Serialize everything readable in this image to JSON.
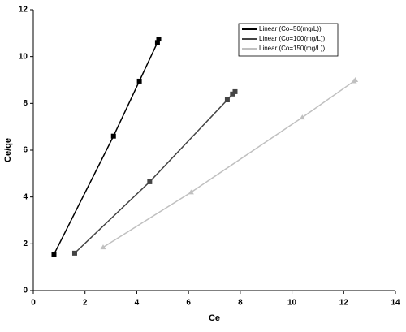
{
  "chart_data": {
    "type": "scatter",
    "x_label": "Ce",
    "y_label": "Ce/qe",
    "xlim": [
      0,
      14
    ],
    "xticks": [
      0,
      2,
      4,
      6,
      8,
      10,
      12,
      14
    ],
    "ylim": [
      0,
      12
    ],
    "yticks": [
      0,
      2,
      4,
      6,
      8,
      10,
      12
    ],
    "grid": false,
    "legend": "upper right",
    "series": [
      {
        "name": "Linear (Co=50(mg/L))",
        "color": "#000000",
        "marker": "square",
        "x": [
          0.8,
          3.1,
          4.1,
          4.8,
          4.85
        ],
        "values": [
          1.55,
          6.6,
          8.95,
          10.6,
          10.75
        ]
      },
      {
        "name": "Linear (Co=100(mg/L))",
        "color": "#444444",
        "marker": "square",
        "x": [
          1.6,
          4.5,
          7.5,
          7.7,
          7.8
        ],
        "values": [
          1.6,
          4.65,
          8.15,
          8.4,
          8.5
        ]
      },
      {
        "name": "Linear (Co=150(mg/L))",
        "color": "#c0c0c0",
        "marker": "triangle",
        "x": [
          2.7,
          6.1,
          10.4,
          12.4,
          12.45
        ],
        "values": [
          1.85,
          4.2,
          7.4,
          8.95,
          9.0
        ]
      }
    ]
  }
}
